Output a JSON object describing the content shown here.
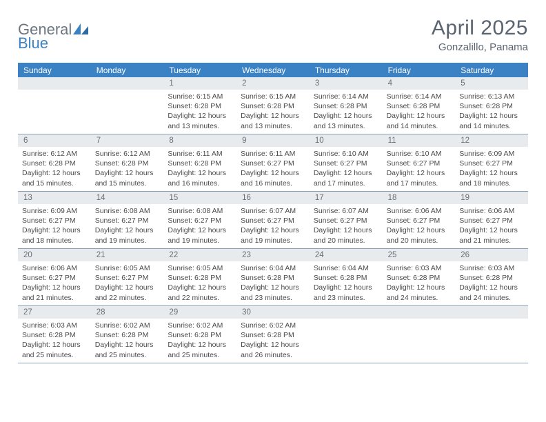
{
  "brand": {
    "word1": "General",
    "word2": "Blue"
  },
  "title": "April 2025",
  "location": "Gonzalillo, Panama",
  "colors": {
    "accent": "#3b82c4",
    "headerText": "#5a6470",
    "dayHeaderBg": "#e8ebee",
    "rowBorder": "#8aa0b8",
    "bodyText": "#4a4a4a"
  },
  "dow": [
    "Sunday",
    "Monday",
    "Tuesday",
    "Wednesday",
    "Thursday",
    "Friday",
    "Saturday"
  ],
  "weeks": [
    [
      {
        "n": "",
        "sr": "",
        "ss": "",
        "dl": ""
      },
      {
        "n": "",
        "sr": "",
        "ss": "",
        "dl": ""
      },
      {
        "n": "1",
        "sr": "6:15 AM",
        "ss": "6:28 PM",
        "dl": "12 hours and 13 minutes."
      },
      {
        "n": "2",
        "sr": "6:15 AM",
        "ss": "6:28 PM",
        "dl": "12 hours and 13 minutes."
      },
      {
        "n": "3",
        "sr": "6:14 AM",
        "ss": "6:28 PM",
        "dl": "12 hours and 13 minutes."
      },
      {
        "n": "4",
        "sr": "6:14 AM",
        "ss": "6:28 PM",
        "dl": "12 hours and 14 minutes."
      },
      {
        "n": "5",
        "sr": "6:13 AM",
        "ss": "6:28 PM",
        "dl": "12 hours and 14 minutes."
      }
    ],
    [
      {
        "n": "6",
        "sr": "6:12 AM",
        "ss": "6:28 PM",
        "dl": "12 hours and 15 minutes."
      },
      {
        "n": "7",
        "sr": "6:12 AM",
        "ss": "6:28 PM",
        "dl": "12 hours and 15 minutes."
      },
      {
        "n": "8",
        "sr": "6:11 AM",
        "ss": "6:28 PM",
        "dl": "12 hours and 16 minutes."
      },
      {
        "n": "9",
        "sr": "6:11 AM",
        "ss": "6:27 PM",
        "dl": "12 hours and 16 minutes."
      },
      {
        "n": "10",
        "sr": "6:10 AM",
        "ss": "6:27 PM",
        "dl": "12 hours and 17 minutes."
      },
      {
        "n": "11",
        "sr": "6:10 AM",
        "ss": "6:27 PM",
        "dl": "12 hours and 17 minutes."
      },
      {
        "n": "12",
        "sr": "6:09 AM",
        "ss": "6:27 PM",
        "dl": "12 hours and 18 minutes."
      }
    ],
    [
      {
        "n": "13",
        "sr": "6:09 AM",
        "ss": "6:27 PM",
        "dl": "12 hours and 18 minutes."
      },
      {
        "n": "14",
        "sr": "6:08 AM",
        "ss": "6:27 PM",
        "dl": "12 hours and 19 minutes."
      },
      {
        "n": "15",
        "sr": "6:08 AM",
        "ss": "6:27 PM",
        "dl": "12 hours and 19 minutes."
      },
      {
        "n": "16",
        "sr": "6:07 AM",
        "ss": "6:27 PM",
        "dl": "12 hours and 19 minutes."
      },
      {
        "n": "17",
        "sr": "6:07 AM",
        "ss": "6:27 PM",
        "dl": "12 hours and 20 minutes."
      },
      {
        "n": "18",
        "sr": "6:06 AM",
        "ss": "6:27 PM",
        "dl": "12 hours and 20 minutes."
      },
      {
        "n": "19",
        "sr": "6:06 AM",
        "ss": "6:27 PM",
        "dl": "12 hours and 21 minutes."
      }
    ],
    [
      {
        "n": "20",
        "sr": "6:06 AM",
        "ss": "6:27 PM",
        "dl": "12 hours and 21 minutes."
      },
      {
        "n": "21",
        "sr": "6:05 AM",
        "ss": "6:27 PM",
        "dl": "12 hours and 22 minutes."
      },
      {
        "n": "22",
        "sr": "6:05 AM",
        "ss": "6:28 PM",
        "dl": "12 hours and 22 minutes."
      },
      {
        "n": "23",
        "sr": "6:04 AM",
        "ss": "6:28 PM",
        "dl": "12 hours and 23 minutes."
      },
      {
        "n": "24",
        "sr": "6:04 AM",
        "ss": "6:28 PM",
        "dl": "12 hours and 23 minutes."
      },
      {
        "n": "25",
        "sr": "6:03 AM",
        "ss": "6:28 PM",
        "dl": "12 hours and 24 minutes."
      },
      {
        "n": "26",
        "sr": "6:03 AM",
        "ss": "6:28 PM",
        "dl": "12 hours and 24 minutes."
      }
    ],
    [
      {
        "n": "27",
        "sr": "6:03 AM",
        "ss": "6:28 PM",
        "dl": "12 hours and 25 minutes."
      },
      {
        "n": "28",
        "sr": "6:02 AM",
        "ss": "6:28 PM",
        "dl": "12 hours and 25 minutes."
      },
      {
        "n": "29",
        "sr": "6:02 AM",
        "ss": "6:28 PM",
        "dl": "12 hours and 25 minutes."
      },
      {
        "n": "30",
        "sr": "6:02 AM",
        "ss": "6:28 PM",
        "dl": "12 hours and 26 minutes."
      },
      {
        "n": "",
        "sr": "",
        "ss": "",
        "dl": ""
      },
      {
        "n": "",
        "sr": "",
        "ss": "",
        "dl": ""
      },
      {
        "n": "",
        "sr": "",
        "ss": "",
        "dl": ""
      }
    ]
  ],
  "labels": {
    "sunrise": "Sunrise:",
    "sunset": "Sunset:",
    "daylight": "Daylight:"
  }
}
